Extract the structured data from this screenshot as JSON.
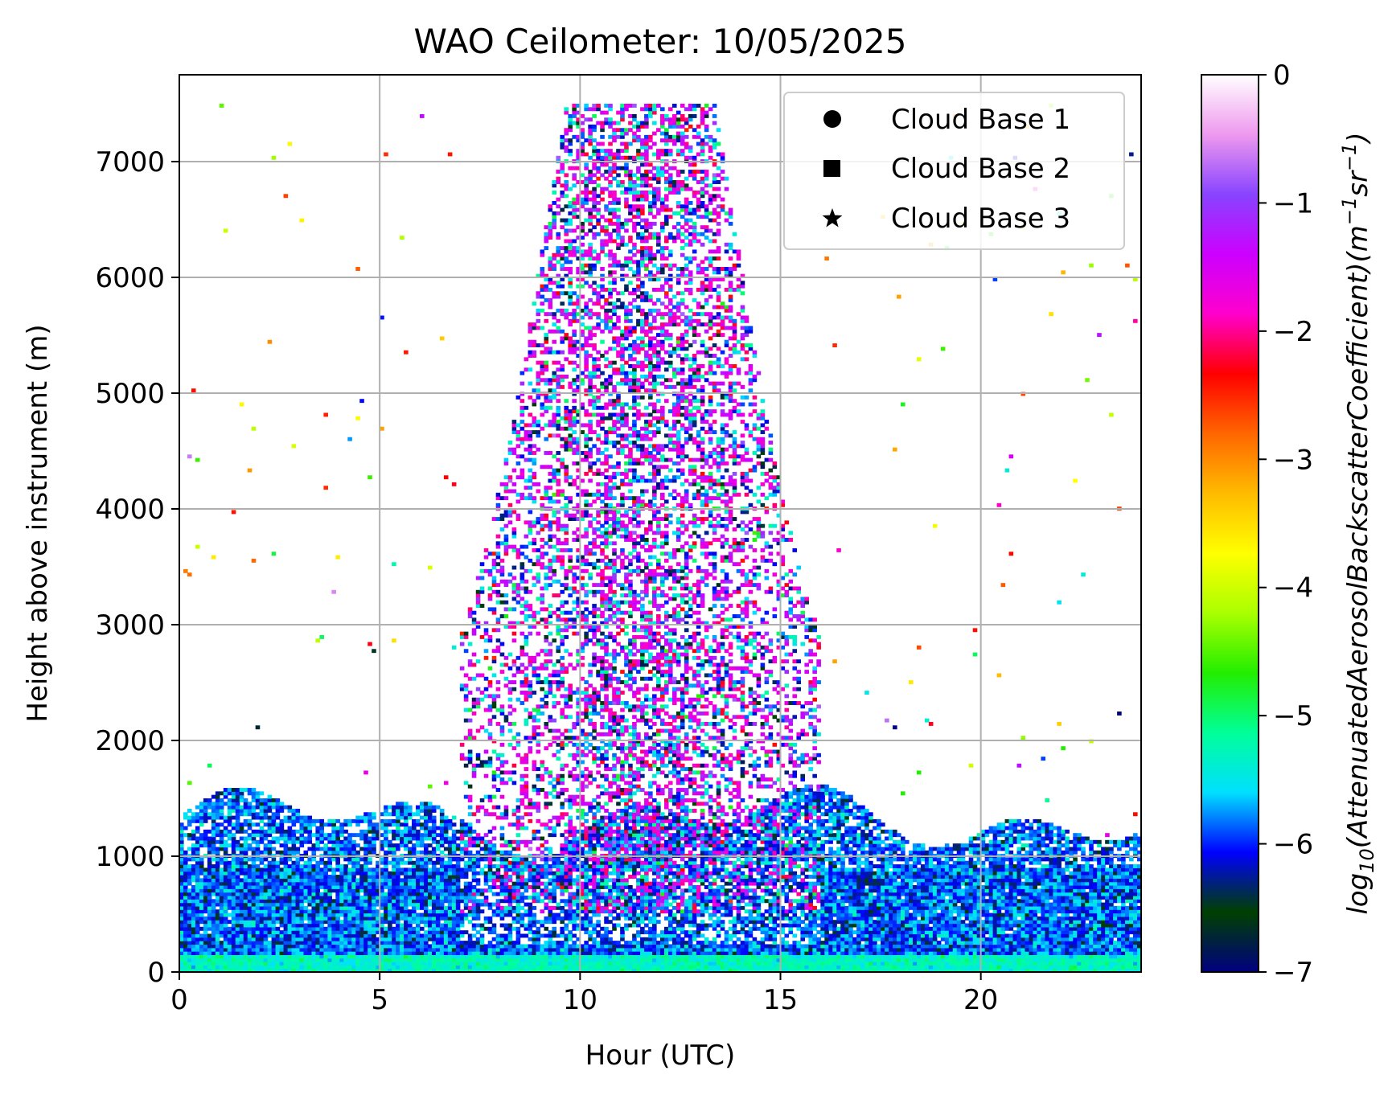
{
  "chart_data": {
    "type": "heatmap",
    "title": "WAO Ceilometer: 10/05/2025",
    "xlabel": "Hour (UTC)",
    "ylabel": "Height above instrument (m)",
    "xlim": [
      0,
      24
    ],
    "ylim": [
      0,
      7750
    ],
    "x_ticks": [
      0,
      5,
      10,
      15,
      20
    ],
    "y_ticks": [
      0,
      1000,
      2000,
      3000,
      4000,
      5000,
      6000,
      7000
    ],
    "grid": true,
    "legend_position": "top-right",
    "legend": [
      {
        "marker": "circle",
        "label": "Cloud Base 1"
      },
      {
        "marker": "square",
        "label": "Cloud Base 2"
      },
      {
        "marker": "star",
        "label": "Cloud Base 3"
      }
    ],
    "colorbar": {
      "label_math": "log",
      "label_sub": "10",
      "label_main": "(AttenuatedAerosolBackscatterCoefficient)(m",
      "unit_exp1": "−1",
      "unit_mid": "sr",
      "unit_exp2": "−1",
      "unit_close": ")",
      "range": [
        -7,
        0
      ],
      "ticks": [
        "0",
        "−1",
        "−2",
        "−3",
        "−4",
        "−5",
        "−6",
        "−7"
      ],
      "tick_values": [
        0,
        -1,
        -2,
        -3,
        -4,
        -5,
        -6,
        -7
      ],
      "colormap": "gist_ncar_r",
      "colormap_stops": [
        "#000080",
        "#004000",
        "#0000ff",
        "#00e0ff",
        "#00ff99",
        "#22ee00",
        "#aaff00",
        "#ffff00",
        "#ffbb00",
        "#ff6600",
        "#ff0000",
        "#ff00cc",
        "#cc00ff",
        "#8844ff",
        "#ee99ee",
        "#ffffff"
      ]
    },
    "field_summary": {
      "boundary_layer": {
        "x_range": [
          0,
          24
        ],
        "height_top_m": [
          1000,
          1650
        ],
        "log10_values": [
          -6.5,
          -5.2
        ]
      },
      "elevated_cloud_column": {
        "x_range": [
          7,
          16
        ],
        "height_range_m": [
          500,
          7500
        ],
        "log10_values": [
          -7,
          -1
        ]
      },
      "near_surface_layer": {
        "height_range_m": [
          0,
          150
        ],
        "log10_value": -5.3
      }
    }
  }
}
